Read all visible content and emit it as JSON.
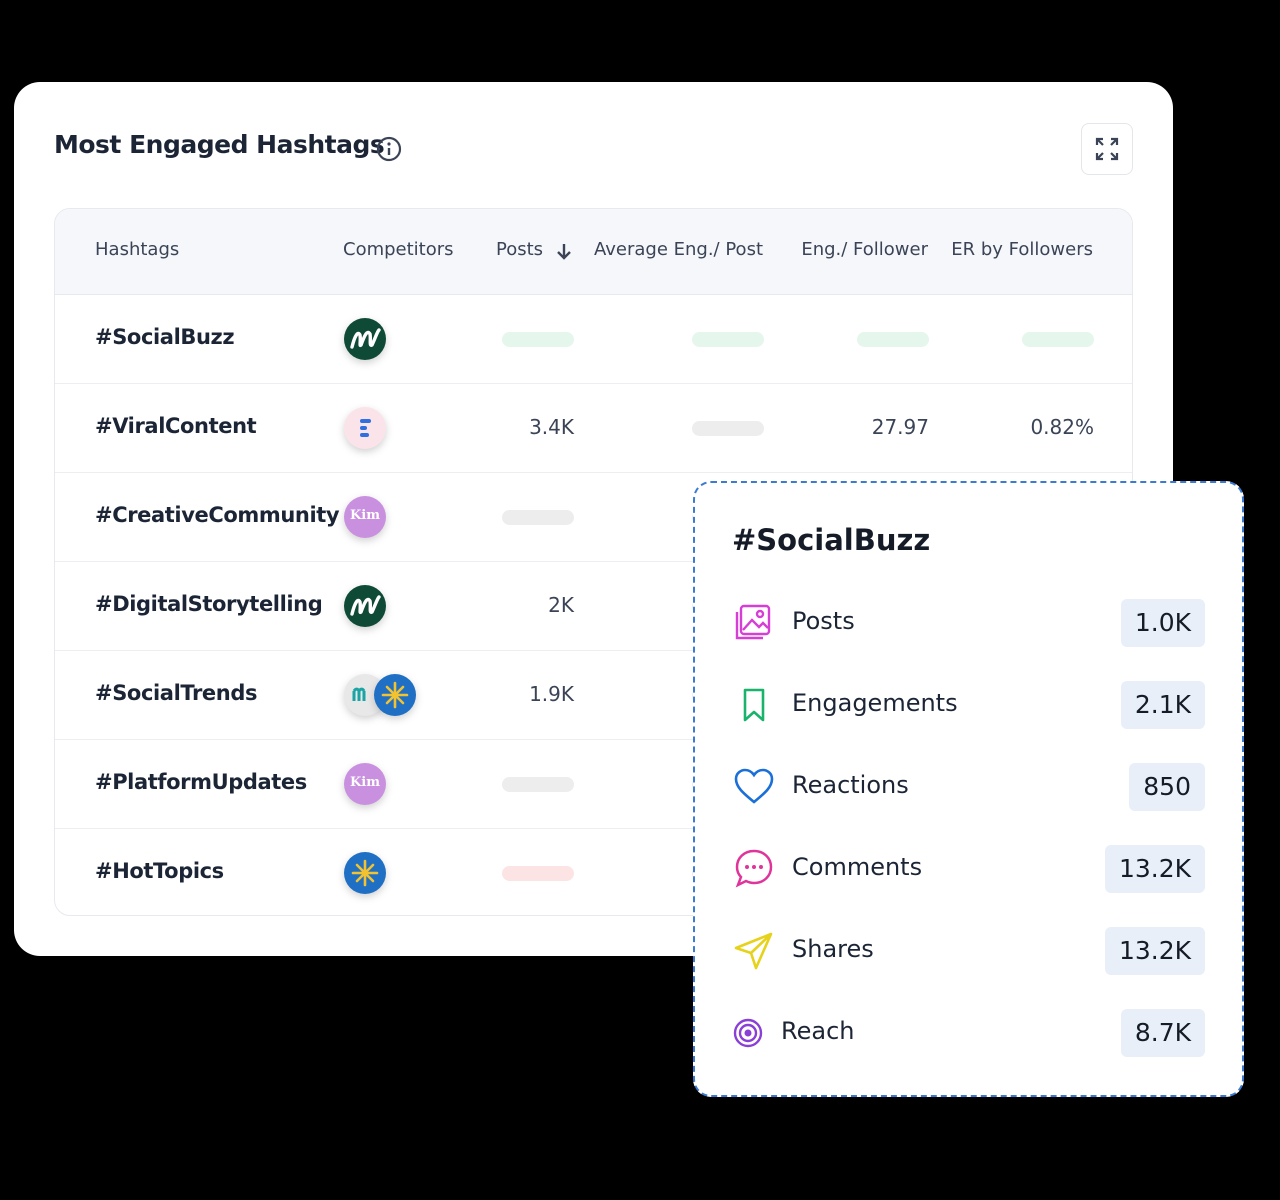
{
  "header": {
    "title": "Most Engaged Hashtags"
  },
  "table": {
    "columns": [
      "Hashtags",
      "Competitors",
      "Posts",
      "Average Eng./ Post",
      "Eng./ Follower",
      "ER by Followers"
    ],
    "rows": [
      {
        "hashtag": "#SocialBuzz"
      },
      {
        "hashtag": "#ViralContent",
        "posts": "3.4K",
        "eng_follower": "27.97",
        "er": "0.82%"
      },
      {
        "hashtag": "#CreativeCommunity",
        "logo": "Kim"
      },
      {
        "hashtag": "#DigitalStorytelling",
        "posts": "2K"
      },
      {
        "hashtag": "#SocialTrends",
        "posts": "1.9K"
      },
      {
        "hashtag": "#PlatformUpdates",
        "logo": "Kim"
      },
      {
        "hashtag": "#HotTopics"
      }
    ]
  },
  "popup": {
    "title": "#SocialBuzz",
    "metrics": [
      {
        "label": "Posts",
        "value": "1.0K"
      },
      {
        "label": "Engagements",
        "value": "2.1K"
      },
      {
        "label": "Reactions",
        "value": "850"
      },
      {
        "label": "Comments",
        "value": "13.2K"
      },
      {
        "label": "Shares",
        "value": "13.2K"
      },
      {
        "label": "Reach",
        "value": "8.7K"
      }
    ]
  }
}
